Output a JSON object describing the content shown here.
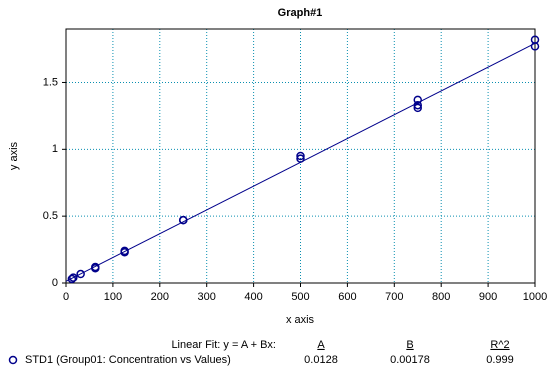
{
  "chart_data": {
    "type": "scatter",
    "title": "Graph#1",
    "x_label": "x axis",
    "y_label": "y axis",
    "xlim": [
      0,
      1000
    ],
    "xticks": [
      0,
      100,
      200,
      300,
      400,
      500,
      600,
      700,
      800,
      900,
      1000
    ],
    "ylim": [
      0,
      1.9
    ],
    "yticks": [
      0,
      0.5,
      1,
      1.5
    ],
    "grid": true,
    "grid_color": "#0a8fb0",
    "series": [
      {
        "name": "STD1 (Group01: Concentration vs Values)",
        "color": "#00008b",
        "x": [
          12.5,
          15.625,
          31.25,
          62.5,
          62.5,
          125,
          125,
          250,
          250,
          500,
          500,
          750,
          750,
          750,
          1000,
          1000
        ],
        "values": [
          0.03,
          0.04,
          0.067,
          0.11,
          0.12,
          0.23,
          0.24,
          0.47,
          0.47,
          0.93,
          0.95,
          1.37,
          1.33,
          1.31,
          1.82,
          1.77
        ]
      }
    ],
    "fit": {
      "label": "Linear Fit: y = A + Bx:",
      "columns": [
        "A",
        "B",
        "R^2"
      ],
      "values": [
        0.0128,
        0.00178,
        0.999
      ],
      "color": "#00008b"
    }
  }
}
